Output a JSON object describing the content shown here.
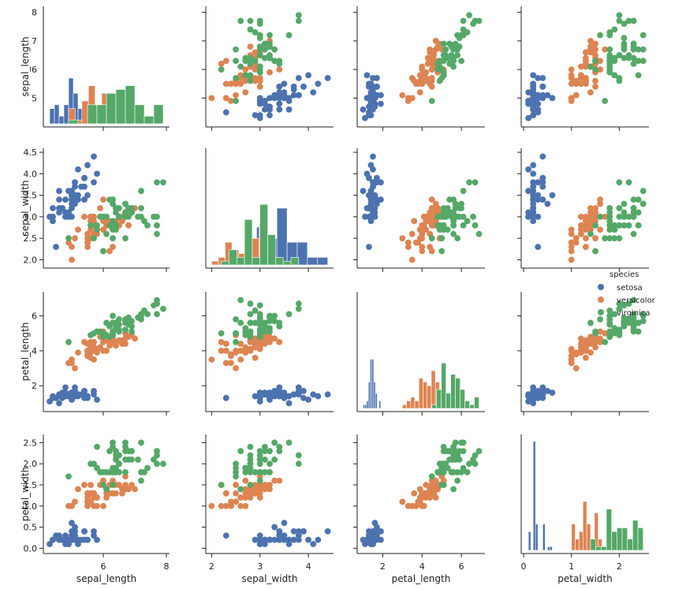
{
  "chart_data": {
    "type": "pairplot",
    "variables": [
      "sepal_length",
      "sepal_width",
      "petal_length",
      "petal_width"
    ],
    "axis_labels": {
      "sepal_length": "sepal_length",
      "sepal_width": "sepal_width",
      "petal_length": "petal_length",
      "petal_width": "petal_width"
    },
    "ranges": {
      "sepal_length": [
        4.1,
        8.1
      ],
      "sepal_width": [
        1.88,
        4.52
      ],
      "petal_length": [
        0.7,
        7.2
      ],
      "petal_width": [
        -0.05,
        2.62
      ]
    },
    "ticks": {
      "sepal_length": {
        "left": [
          5,
          6,
          7,
          8
        ],
        "bottom": [
          6,
          8
        ]
      },
      "sepal_width": {
        "left": [
          2.0,
          2.5,
          3.0,
          3.5,
          4.0,
          4.5
        ],
        "bottom": [
          2,
          3,
          4
        ]
      },
      "petal_length": {
        "left": [
          2,
          4,
          6
        ],
        "bottom": [
          2,
          4,
          6
        ]
      },
      "petal_width": {
        "left": [
          0.0,
          0.5,
          1.0,
          1.5,
          2.0,
          2.5
        ],
        "bottom": [
          0,
          1,
          2
        ]
      }
    },
    "tick_labels": {
      "sepal_length": {
        "left": [
          "5",
          "6",
          "7",
          "8"
        ],
        "bottom": [
          "6",
          "8"
        ]
      },
      "sepal_width": {
        "left": [
          "2.0",
          "2.5",
          "3.0",
          "3.5",
          "4.0",
          "4.5"
        ],
        "bottom": [
          "2",
          "3",
          "4"
        ]
      },
      "petal_length": {
        "left": [
          "2",
          "4",
          "6"
        ],
        "bottom": [
          "2",
          "4",
          "6"
        ]
      },
      "petal_width": {
        "left": [
          "0.0",
          "0.5",
          "1.0",
          "1.5",
          "2.0",
          "2.5"
        ],
        "bottom": [
          "0",
          "1",
          "2"
        ]
      }
    },
    "diagonal": "histogram",
    "offdiagonal": "scatter",
    "legend": {
      "title": "species",
      "placement": "right, between row 2 and row 3",
      "entries": [
        "setosa",
        "versicolor",
        "virginica"
      ]
    },
    "series": [
      {
        "name": "setosa",
        "color": "#4c72b0",
        "columns": [
          "sepal_length",
          "sepal_width",
          "petal_length",
          "petal_width"
        ],
        "points": [
          [
            5.1,
            3.5,
            1.4,
            0.2
          ],
          [
            4.9,
            3.0,
            1.4,
            0.2
          ],
          [
            4.7,
            3.2,
            1.3,
            0.2
          ],
          [
            4.6,
            3.1,
            1.5,
            0.2
          ],
          [
            5.0,
            3.6,
            1.4,
            0.2
          ],
          [
            5.4,
            3.9,
            1.7,
            0.4
          ],
          [
            4.6,
            3.4,
            1.4,
            0.3
          ],
          [
            5.0,
            3.4,
            1.5,
            0.2
          ],
          [
            4.4,
            2.9,
            1.4,
            0.2
          ],
          [
            4.9,
            3.1,
            1.5,
            0.1
          ],
          [
            5.4,
            3.7,
            1.5,
            0.2
          ],
          [
            4.8,
            3.4,
            1.6,
            0.2
          ],
          [
            4.8,
            3.0,
            1.4,
            0.1
          ],
          [
            4.3,
            3.0,
            1.1,
            0.1
          ],
          [
            5.8,
            4.0,
            1.2,
            0.2
          ],
          [
            5.7,
            4.4,
            1.5,
            0.4
          ],
          [
            5.4,
            3.9,
            1.3,
            0.4
          ],
          [
            5.1,
            3.5,
            1.4,
            0.3
          ],
          [
            5.7,
            3.8,
            1.7,
            0.3
          ],
          [
            5.1,
            3.8,
            1.5,
            0.3
          ],
          [
            5.4,
            3.4,
            1.7,
            0.2
          ],
          [
            5.1,
            3.7,
            1.5,
            0.4
          ],
          [
            4.6,
            3.6,
            1.0,
            0.2
          ],
          [
            5.1,
            3.3,
            1.7,
            0.5
          ],
          [
            4.8,
            3.4,
            1.9,
            0.2
          ],
          [
            5.0,
            3.0,
            1.6,
            0.2
          ],
          [
            5.0,
            3.4,
            1.6,
            0.4
          ],
          [
            5.2,
            3.5,
            1.5,
            0.2
          ],
          [
            5.2,
            3.4,
            1.4,
            0.2
          ],
          [
            4.7,
            3.2,
            1.6,
            0.2
          ],
          [
            4.8,
            3.1,
            1.6,
            0.2
          ],
          [
            5.4,
            3.4,
            1.5,
            0.4
          ],
          [
            5.2,
            4.1,
            1.5,
            0.1
          ],
          [
            5.5,
            4.2,
            1.4,
            0.2
          ],
          [
            4.9,
            3.1,
            1.5,
            0.2
          ],
          [
            5.0,
            3.2,
            1.2,
            0.2
          ],
          [
            5.5,
            3.5,
            1.3,
            0.2
          ],
          [
            4.9,
            3.6,
            1.4,
            0.1
          ],
          [
            4.4,
            3.0,
            1.3,
            0.2
          ],
          [
            5.1,
            3.4,
            1.5,
            0.2
          ],
          [
            5.0,
            3.5,
            1.3,
            0.3
          ],
          [
            4.5,
            2.3,
            1.3,
            0.3
          ],
          [
            4.4,
            3.2,
            1.3,
            0.2
          ],
          [
            5.0,
            3.5,
            1.6,
            0.6
          ],
          [
            5.1,
            3.8,
            1.9,
            0.4
          ],
          [
            4.8,
            3.0,
            1.4,
            0.3
          ],
          [
            5.1,
            3.8,
            1.6,
            0.2
          ],
          [
            4.6,
            3.2,
            1.4,
            0.2
          ],
          [
            5.3,
            3.7,
            1.5,
            0.2
          ],
          [
            5.0,
            3.3,
            1.4,
            0.2
          ]
        ]
      },
      {
        "name": "versicolor",
        "color": "#dd8452",
        "columns": [
          "sepal_length",
          "sepal_width",
          "petal_length",
          "petal_width"
        ],
        "points": [
          [
            7.0,
            3.2,
            4.7,
            1.4
          ],
          [
            6.4,
            3.2,
            4.5,
            1.5
          ],
          [
            6.9,
            3.1,
            4.9,
            1.5
          ],
          [
            5.5,
            2.3,
            4.0,
            1.3
          ],
          [
            6.5,
            2.8,
            4.6,
            1.5
          ],
          [
            5.7,
            2.8,
            4.5,
            1.3
          ],
          [
            6.3,
            3.3,
            4.7,
            1.6
          ],
          [
            4.9,
            2.4,
            3.3,
            1.0
          ],
          [
            6.6,
            2.9,
            4.6,
            1.3
          ],
          [
            5.2,
            2.7,
            3.9,
            1.4
          ],
          [
            5.0,
            2.0,
            3.5,
            1.0
          ],
          [
            5.9,
            3.0,
            4.2,
            1.5
          ],
          [
            6.0,
            2.2,
            4.0,
            1.0
          ],
          [
            6.1,
            2.9,
            4.7,
            1.4
          ],
          [
            5.6,
            2.9,
            3.6,
            1.3
          ],
          [
            6.7,
            3.1,
            4.4,
            1.4
          ],
          [
            5.6,
            3.0,
            4.5,
            1.5
          ],
          [
            5.8,
            2.7,
            4.1,
            1.0
          ],
          [
            6.2,
            2.2,
            4.5,
            1.5
          ],
          [
            5.6,
            2.5,
            3.9,
            1.1
          ],
          [
            5.9,
            3.2,
            4.8,
            1.8
          ],
          [
            6.1,
            2.8,
            4.0,
            1.3
          ],
          [
            6.3,
            2.5,
            4.9,
            1.5
          ],
          [
            6.1,
            2.8,
            4.7,
            1.2
          ],
          [
            6.4,
            2.9,
            4.3,
            1.3
          ],
          [
            6.6,
            3.0,
            4.4,
            1.4
          ],
          [
            6.8,
            2.8,
            4.8,
            1.4
          ],
          [
            6.7,
            3.0,
            5.0,
            1.7
          ],
          [
            6.0,
            2.9,
            4.5,
            1.5
          ],
          [
            5.7,
            2.6,
            3.5,
            1.0
          ],
          [
            5.5,
            2.4,
            3.8,
            1.1
          ],
          [
            5.5,
            2.4,
            3.7,
            1.0
          ],
          [
            5.8,
            2.7,
            3.9,
            1.2
          ],
          [
            6.0,
            2.7,
            5.1,
            1.6
          ],
          [
            5.4,
            3.0,
            4.5,
            1.5
          ],
          [
            6.0,
            3.4,
            4.5,
            1.6
          ],
          [
            6.7,
            3.1,
            4.7,
            1.5
          ],
          [
            6.3,
            2.3,
            4.4,
            1.3
          ],
          [
            5.6,
            3.0,
            4.1,
            1.3
          ],
          [
            5.5,
            2.5,
            4.0,
            1.3
          ],
          [
            5.5,
            2.6,
            4.4,
            1.2
          ],
          [
            6.1,
            3.0,
            4.6,
            1.4
          ],
          [
            5.8,
            2.6,
            4.0,
            1.2
          ],
          [
            5.0,
            2.3,
            3.3,
            1.0
          ],
          [
            5.6,
            2.7,
            4.2,
            1.3
          ],
          [
            5.7,
            3.0,
            4.2,
            1.2
          ],
          [
            5.7,
            2.9,
            4.2,
            1.3
          ],
          [
            6.2,
            2.9,
            4.3,
            1.3
          ],
          [
            5.1,
            2.5,
            3.0,
            1.1
          ],
          [
            5.7,
            2.8,
            4.1,
            1.3
          ]
        ]
      },
      {
        "name": "virginica",
        "color": "#55a868",
        "columns": [
          "sepal_length",
          "sepal_width",
          "petal_length",
          "petal_width"
        ],
        "points": [
          [
            6.3,
            3.3,
            6.0,
            2.5
          ],
          [
            5.8,
            2.7,
            5.1,
            1.9
          ],
          [
            7.1,
            3.0,
            5.9,
            2.1
          ],
          [
            6.3,
            2.9,
            5.6,
            1.8
          ],
          [
            6.5,
            3.0,
            5.8,
            2.2
          ],
          [
            7.6,
            3.0,
            6.6,
            2.1
          ],
          [
            4.9,
            2.5,
            4.5,
            1.7
          ],
          [
            7.3,
            2.9,
            6.3,
            1.8
          ],
          [
            6.7,
            2.5,
            5.8,
            1.8
          ],
          [
            7.2,
            3.6,
            6.1,
            2.5
          ],
          [
            6.5,
            3.2,
            5.1,
            2.0
          ],
          [
            6.4,
            2.7,
            5.3,
            1.9
          ],
          [
            6.8,
            3.0,
            5.5,
            2.1
          ],
          [
            5.7,
            2.5,
            5.0,
            2.0
          ],
          [
            5.8,
            2.8,
            5.1,
            2.4
          ],
          [
            6.4,
            3.2,
            5.3,
            2.3
          ],
          [
            6.5,
            3.0,
            5.5,
            1.8
          ],
          [
            7.7,
            3.8,
            6.7,
            2.2
          ],
          [
            7.7,
            2.6,
            6.9,
            2.3
          ],
          [
            6.0,
            2.2,
            5.0,
            1.5
          ],
          [
            6.9,
            3.2,
            5.7,
            2.3
          ],
          [
            5.6,
            2.8,
            4.9,
            2.0
          ],
          [
            7.7,
            2.8,
            6.7,
            2.0
          ],
          [
            6.3,
            2.7,
            4.9,
            1.8
          ],
          [
            6.7,
            3.3,
            5.7,
            2.1
          ],
          [
            7.2,
            3.2,
            6.0,
            1.8
          ],
          [
            6.2,
            2.8,
            4.8,
            1.8
          ],
          [
            6.1,
            3.0,
            4.9,
            1.8
          ],
          [
            6.4,
            2.8,
            5.6,
            2.1
          ],
          [
            7.2,
            3.0,
            5.8,
            1.6
          ],
          [
            7.4,
            2.8,
            6.1,
            1.9
          ],
          [
            7.9,
            3.8,
            6.4,
            2.0
          ],
          [
            6.4,
            2.8,
            5.6,
            2.2
          ],
          [
            6.3,
            2.8,
            5.1,
            1.5
          ],
          [
            6.1,
            2.6,
            5.6,
            1.4
          ],
          [
            7.7,
            3.0,
            6.1,
            2.3
          ],
          [
            6.3,
            3.4,
            5.6,
            2.4
          ],
          [
            6.4,
            3.1,
            5.5,
            1.8
          ],
          [
            6.0,
            3.0,
            4.8,
            1.8
          ],
          [
            6.9,
            3.1,
            5.4,
            2.1
          ],
          [
            6.7,
            3.1,
            5.6,
            2.4
          ],
          [
            6.9,
            3.1,
            5.1,
            2.3
          ],
          [
            5.8,
            2.7,
            5.1,
            1.9
          ],
          [
            6.8,
            3.2,
            5.9,
            2.3
          ],
          [
            6.7,
            3.3,
            5.7,
            2.5
          ],
          [
            6.7,
            3.0,
            5.2,
            2.3
          ],
          [
            6.3,
            2.5,
            5.0,
            1.9
          ],
          [
            6.5,
            3.0,
            5.2,
            2.0
          ],
          [
            6.2,
            3.4,
            5.4,
            2.3
          ],
          [
            5.9,
            3.0,
            5.1,
            1.8
          ]
        ]
      }
    ]
  }
}
